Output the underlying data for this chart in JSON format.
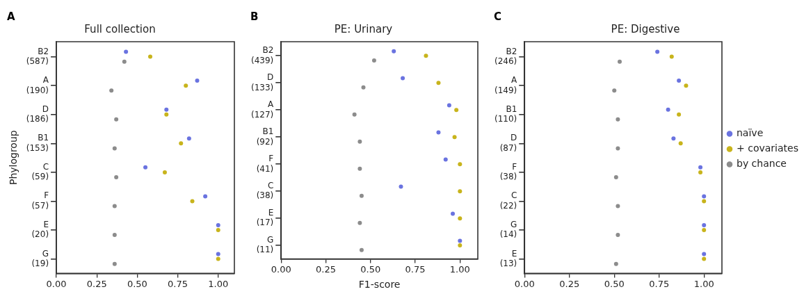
{
  "chart_data": [
    {
      "type": "scatter",
      "title": "Full collection",
      "ylabel": "Phylogroup",
      "annotations": [
        "A"
      ],
      "orientation": "horizontal",
      "marker": "circle",
      "grid": false,
      "legend": false,
      "categories": [
        "B2\n(587)",
        "A\n(190)",
        "D\n(186)",
        "B1\n(153)",
        "C\n(59)",
        "F\n(57)",
        "E\n(20)",
        "G\n(19)"
      ],
      "xlim": [
        0,
        1.1
      ],
      "xticks": [
        {
          "value": 0,
          "label": "0.00"
        },
        {
          "value": 0.25,
          "label": "0.25"
        },
        {
          "value": 0.5,
          "label": "0.50"
        },
        {
          "value": 0.75,
          "label": "0.75"
        },
        {
          "value": 1,
          "label": "1.00"
        }
      ],
      "series": [
        {
          "color": "#6a73e0",
          "values": [
            0.43,
            0.87,
            0.68,
            0.82,
            0.55,
            0.92,
            1.0,
            1.0
          ]
        },
        {
          "color": "#c8b41c",
          "values": [
            0.58,
            0.8,
            0.68,
            0.77,
            0.67,
            0.84,
            1.0,
            1.0
          ]
        },
        {
          "color": "#8c8c8c",
          "values": [
            0.42,
            0.34,
            0.37,
            0.36,
            0.37,
            0.36,
            0.36,
            0.36
          ]
        }
      ]
    },
    {
      "type": "scatter",
      "title": "PE: Urinary",
      "xlabel": "F1-score",
      "annotations": [
        "B"
      ],
      "orientation": "horizontal",
      "marker": "circle",
      "grid": false,
      "legend": false,
      "categories": [
        "B2\n(439)",
        "D\n(133)",
        "A\n(127)",
        "B1\n(92)",
        "F\n(41)",
        "C\n(38)",
        "E\n(17)",
        "G\n(11)"
      ],
      "xlim": [
        0,
        1.1
      ],
      "xticks": [
        {
          "value": 0,
          "label": "0.00"
        },
        {
          "value": 0.25,
          "label": "0.25"
        },
        {
          "value": 0.5,
          "label": "0.50"
        },
        {
          "value": 0.75,
          "label": "0.75"
        },
        {
          "value": 1,
          "label": "1.00"
        }
      ],
      "series": [
        {
          "color": "#6a73e0",
          "values": [
            0.63,
            0.68,
            0.94,
            0.88,
            0.92,
            0.67,
            0.96,
            1.0
          ]
        },
        {
          "color": "#c8b41c",
          "values": [
            0.81,
            0.88,
            0.98,
            0.97,
            1.0,
            1.0,
            1.0,
            1.0
          ]
        },
        {
          "color": "#8c8c8c",
          "values": [
            0.52,
            0.46,
            0.41,
            0.44,
            0.44,
            0.45,
            0.44,
            0.45
          ]
        }
      ]
    },
    {
      "type": "scatter",
      "title": "PE: Digestive",
      "annotations": [
        "C"
      ],
      "orientation": "horizontal",
      "marker": "circle",
      "grid": false,
      "legend": "right",
      "categories": [
        "B2\n(246)",
        "A\n(149)",
        "B1\n(110)",
        "D\n(87)",
        "F\n(38)",
        "C\n(22)",
        "G\n(14)",
        "E\n(13)"
      ],
      "xlim": [
        0,
        1.1
      ],
      "xticks": [
        {
          "value": 0,
          "label": "0.00"
        },
        {
          "value": 0.25,
          "label": "0.25"
        },
        {
          "value": 0.5,
          "label": "0.50"
        },
        {
          "value": 0.75,
          "label": "0.75"
        },
        {
          "value": 1,
          "label": "1.00"
        }
      ],
      "series": [
        {
          "name": "naïve",
          "color": "#6a73e0",
          "values": [
            0.74,
            0.86,
            0.8,
            0.83,
            0.98,
            1.0,
            1.0,
            1.0
          ]
        },
        {
          "name": "+ covariates",
          "color": "#c8b41c",
          "values": [
            0.82,
            0.9,
            0.86,
            0.87,
            0.98,
            1.0,
            1.0,
            1.0
          ]
        },
        {
          "name": "by chance",
          "color": "#8c8c8c",
          "values": [
            0.53,
            0.5,
            0.52,
            0.52,
            0.51,
            0.52,
            0.52,
            0.51
          ]
        }
      ]
    }
  ]
}
